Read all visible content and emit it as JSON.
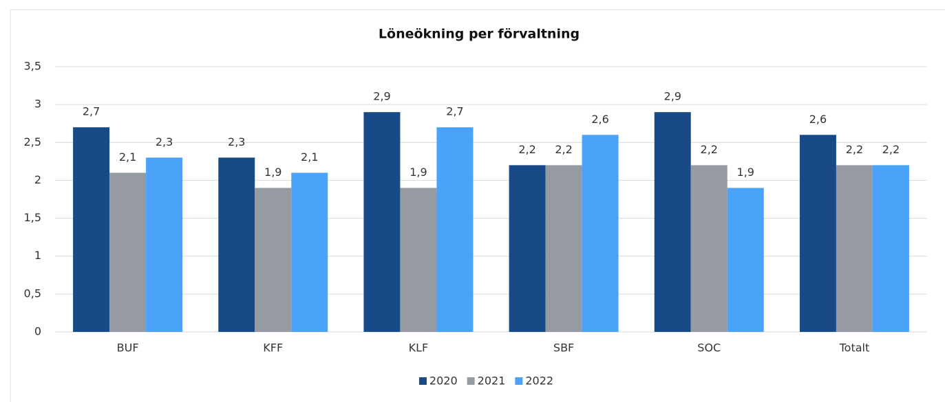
{
  "chart_data": {
    "type": "bar",
    "title": "Löneökning per förvaltning",
    "categories": [
      "BUF",
      "KFF",
      "KLF",
      "SBF",
      "SOC",
      "Totalt"
    ],
    "series": [
      {
        "name": "2020",
        "color": "#174a87",
        "values": [
          2.7,
          2.3,
          2.9,
          2.2,
          2.9,
          2.6
        ],
        "value_labels": [
          "2,7",
          "2,3",
          "2,9",
          "2,2",
          "2,9",
          "2,6"
        ]
      },
      {
        "name": "2021",
        "color": "#969ba3",
        "values": [
          2.1,
          1.9,
          1.9,
          2.2,
          2.2,
          2.2
        ],
        "value_labels": [
          "2,1",
          "1,9",
          "1,9",
          "2,2",
          "2,2",
          "2,2"
        ]
      },
      {
        "name": "2022",
        "color": "#4aa3f8",
        "values": [
          2.3,
          2.1,
          2.7,
          2.6,
          1.9,
          2.2
        ],
        "value_labels": [
          "2,3",
          "2,1",
          "2,7",
          "2,6",
          "1,9",
          "2,2"
        ]
      }
    ],
    "ylim": [
      0,
      3.5
    ],
    "yticks": [
      0,
      {
        "value": 0.5,
        "label": "0,5"
      },
      1,
      {
        "value": 1.5,
        "label": "1,5"
      },
      2,
      {
        "value": 2.5,
        "label": "2,5"
      },
      3,
      {
        "value": 3.5,
        "label": "3,5"
      }
    ],
    "grid": true,
    "legend": "bottom"
  }
}
